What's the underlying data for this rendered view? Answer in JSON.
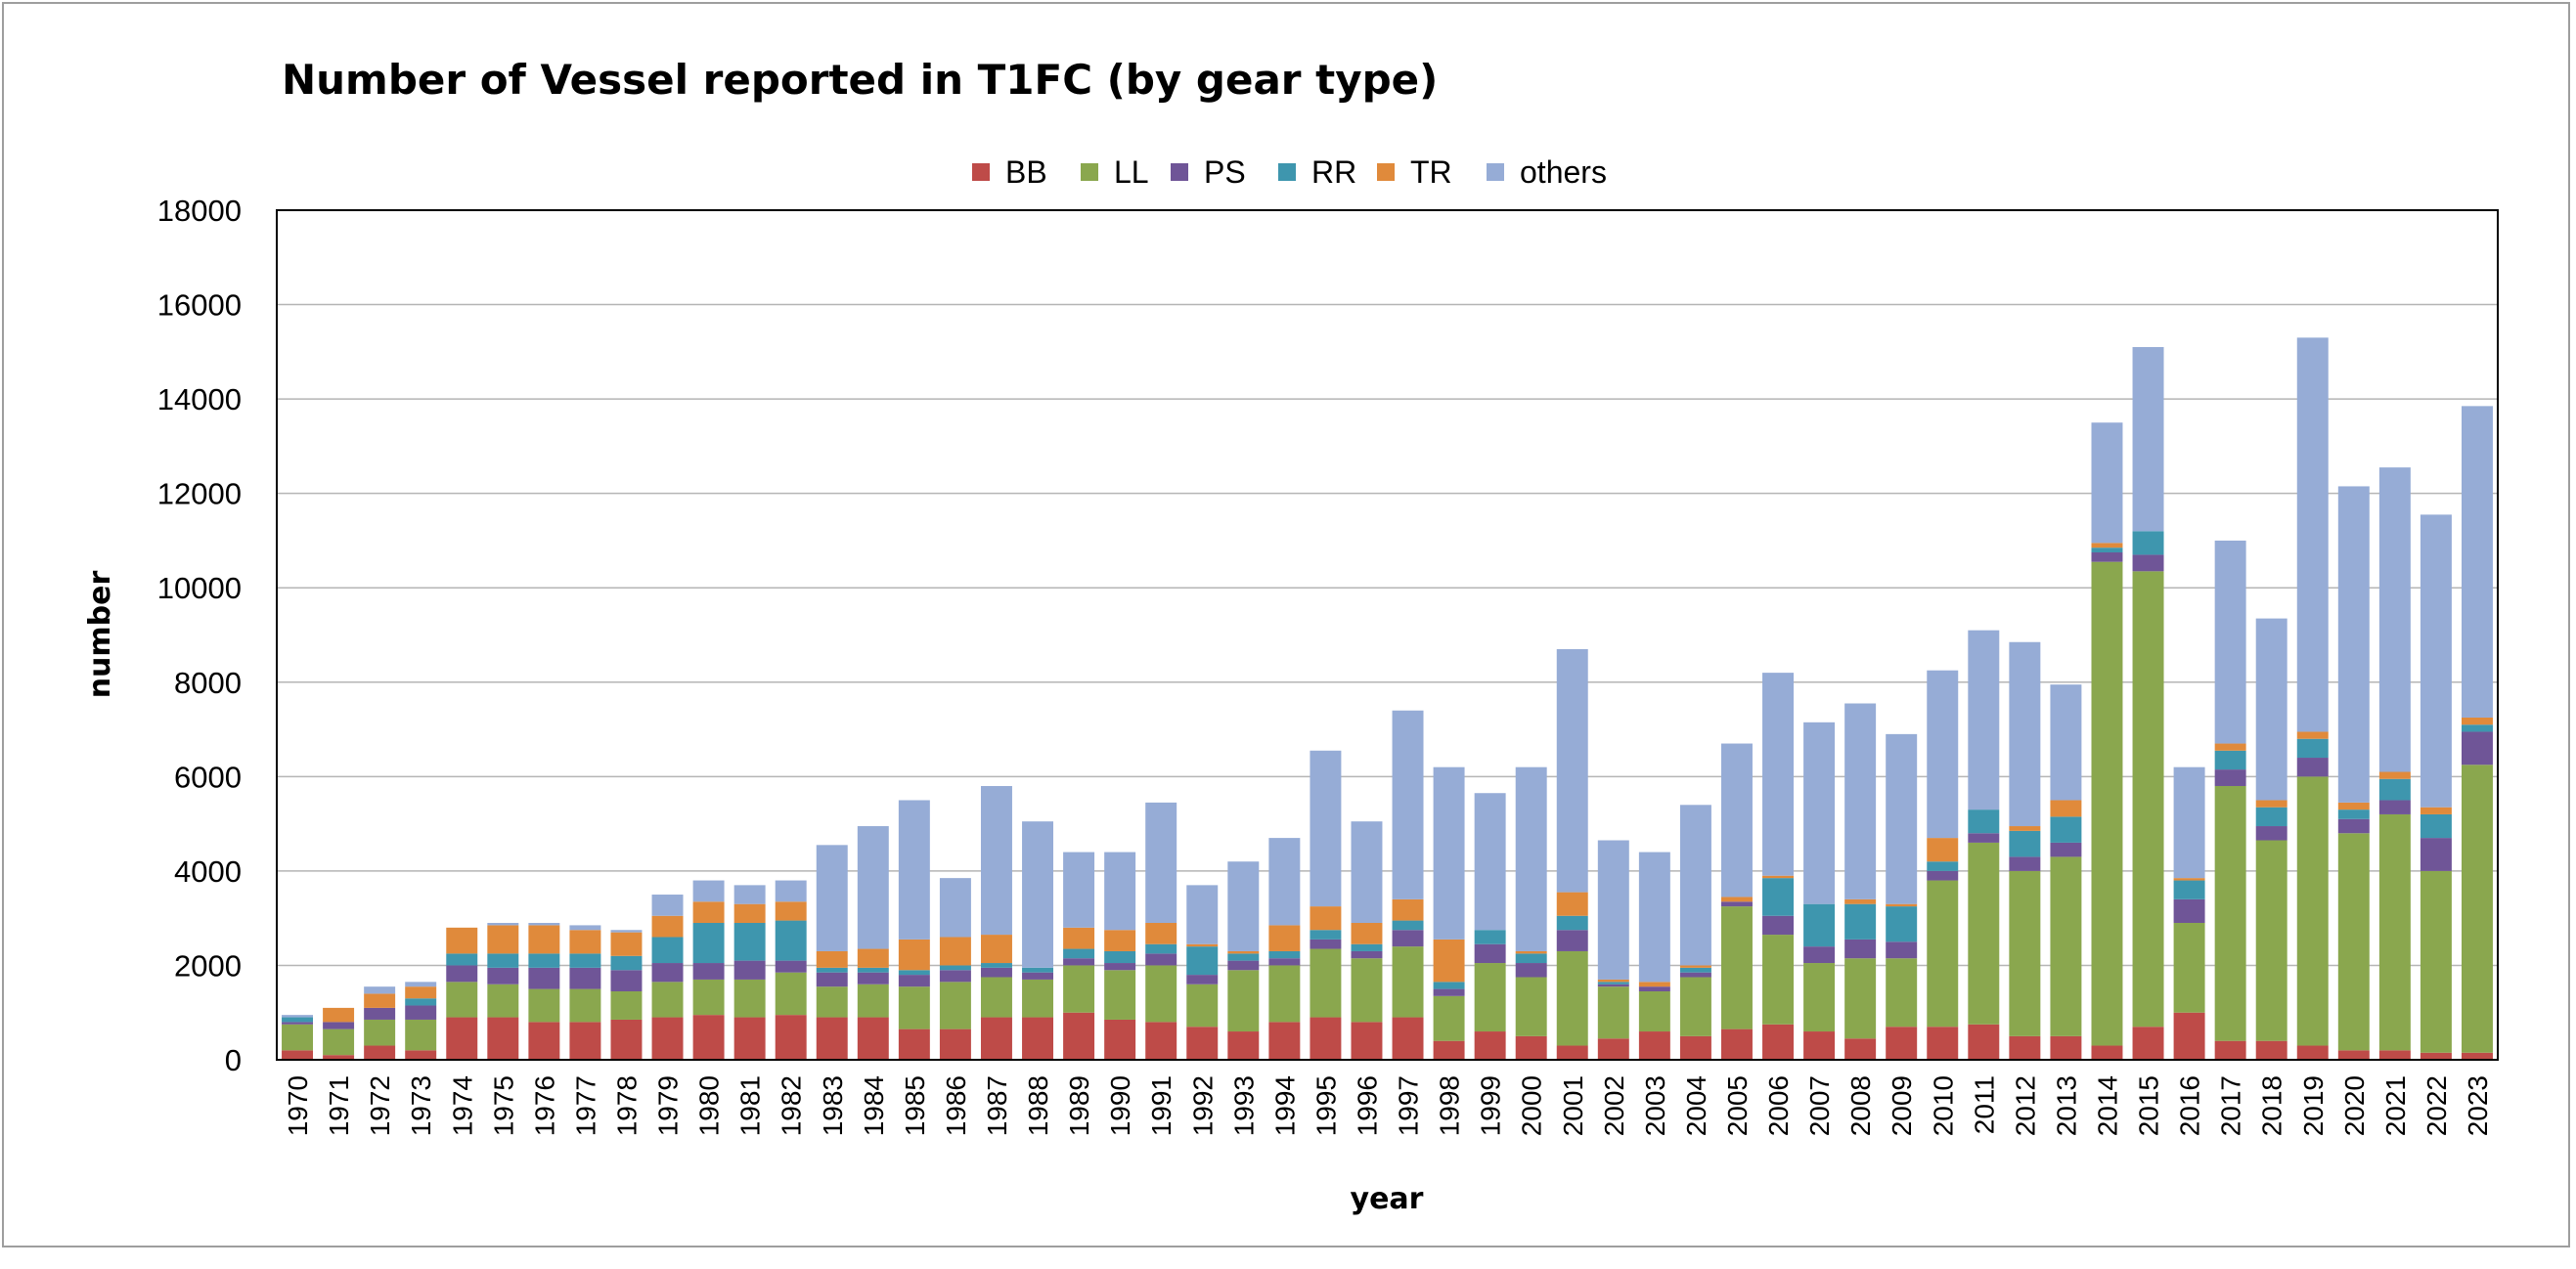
{
  "chart_data": {
    "type": "bar",
    "stacked": true,
    "title": "Number of Vessel reported in T1FC (by gear type)",
    "xlabel": "year",
    "ylabel": "number",
    "ylim": [
      0,
      18000
    ],
    "yticks": [
      0,
      2000,
      4000,
      6000,
      8000,
      10000,
      12000,
      14000,
      16000,
      18000
    ],
    "grid": true,
    "legend_position": "top",
    "categories": [
      "1970",
      "1971",
      "1972",
      "1973",
      "1974",
      "1975",
      "1976",
      "1977",
      "1978",
      "1979",
      "1980",
      "1981",
      "1982",
      "1983",
      "1984",
      "1985",
      "1986",
      "1987",
      "1988",
      "1989",
      "1990",
      "1991",
      "1992",
      "1993",
      "1994",
      "1995",
      "1996",
      "1997",
      "1998",
      "1999",
      "2000",
      "2001",
      "2002",
      "2003",
      "2004",
      "2005",
      "2006",
      "2007",
      "2008",
      "2009",
      "2010",
      "2011",
      "2012",
      "2013",
      "2014",
      "2015",
      "2016",
      "2017",
      "2018",
      "2019",
      "2020",
      "2021",
      "2022",
      "2023"
    ],
    "series": [
      {
        "name": "BB",
        "color": "#be4b48",
        "values": [
          200,
          100,
          300,
          200,
          900,
          900,
          800,
          800,
          850,
          900,
          950,
          900,
          950,
          900,
          900,
          650,
          650,
          900,
          900,
          1000,
          850,
          800,
          700,
          600,
          800,
          900,
          800,
          900,
          400,
          600,
          500,
          300,
          450,
          600,
          500,
          650,
          750,
          600,
          450,
          700,
          700,
          750,
          500,
          500,
          300,
          700,
          1000,
          400,
          400,
          300,
          200,
          200,
          150,
          150
        ]
      },
      {
        "name": "LL",
        "color": "#8aa74e",
        "values": [
          550,
          550,
          550,
          650,
          750,
          700,
          700,
          700,
          600,
          750,
          750,
          800,
          900,
          650,
          700,
          900,
          1000,
          850,
          800,
          1000,
          1050,
          1200,
          900,
          1300,
          1200,
          1450,
          1350,
          1500,
          950,
          1450,
          1250,
          2000,
          1100,
          850,
          1250,
          2600,
          1900,
          1450,
          1700,
          1450,
          3100,
          3850,
          3500,
          3800,
          10250,
          9650,
          1900,
          5400,
          4250,
          5700,
          4600,
          5000,
          3850,
          6100
        ]
      },
      {
        "name": "PS",
        "color": "#6f5597",
        "values": [
          50,
          150,
          250,
          300,
          350,
          350,
          450,
          450,
          450,
          400,
          350,
          400,
          250,
          300,
          250,
          250,
          250,
          200,
          150,
          150,
          150,
          250,
          200,
          200,
          150,
          200,
          150,
          350,
          150,
          400,
          300,
          450,
          50,
          100,
          100,
          100,
          400,
          350,
          400,
          350,
          200,
          200,
          300,
          300,
          200,
          350,
          500,
          350,
          300,
          400,
          300,
          300,
          700,
          700
        ]
      },
      {
        "name": "RR",
        "color": "#3e96ae",
        "values": [
          100,
          0,
          0,
          150,
          250,
          300,
          300,
          300,
          300,
          550,
          850,
          800,
          850,
          100,
          100,
          100,
          100,
          100,
          100,
          200,
          250,
          200,
          600,
          150,
          150,
          200,
          150,
          200,
          150,
          300,
          200,
          300,
          50,
          0,
          100,
          0,
          800,
          900,
          750,
          750,
          200,
          500,
          550,
          550,
          100,
          500,
          400,
          400,
          400,
          400,
          200,
          450,
          500,
          150
        ]
      },
      {
        "name": "TR",
        "color": "#e08a3b",
        "values": [
          0,
          300,
          300,
          250,
          550,
          600,
          600,
          500,
          500,
          450,
          450,
          400,
          400,
          350,
          400,
          650,
          600,
          600,
          0,
          450,
          450,
          450,
          50,
          50,
          550,
          500,
          450,
          450,
          900,
          0,
          50,
          500,
          50,
          100,
          50,
          100,
          50,
          0,
          100,
          50,
          500,
          0,
          100,
          350,
          100,
          0,
          50,
          150,
          150,
          150,
          150,
          150,
          150,
          150
        ]
      },
      {
        "name": "others",
        "color": "#96acd6",
        "values": [
          50,
          0,
          150,
          100,
          0,
          50,
          50,
          100,
          50,
          450,
          450,
          400,
          450,
          2250,
          2600,
          2950,
          1250,
          3150,
          3100,
          1600,
          1650,
          2550,
          1250,
          1900,
          1850,
          3300,
          2150,
          4000,
          3650,
          2900,
          3900,
          5150,
          2950,
          2750,
          3400,
          3250,
          4300,
          3850,
          4150,
          3600,
          3550,
          3800,
          3900,
          2450,
          2550,
          3900,
          2350,
          4300,
          3850,
          8350,
          6700,
          6450,
          6200,
          6600
        ]
      }
    ]
  }
}
